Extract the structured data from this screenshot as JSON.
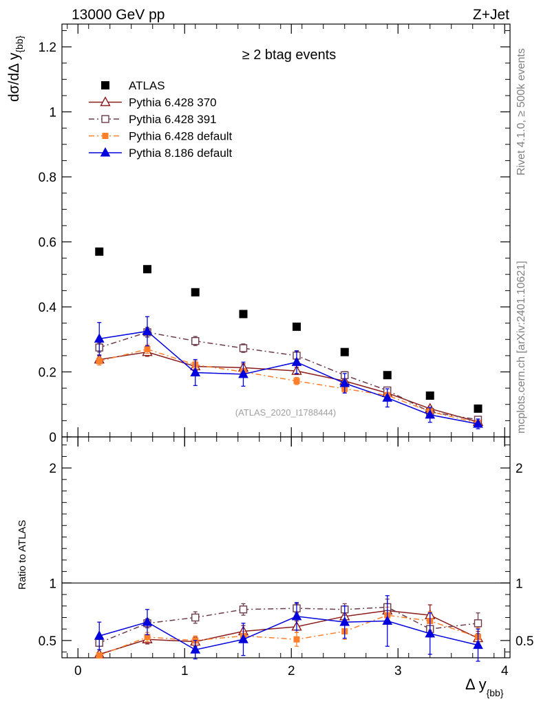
{
  "header": {
    "left_title": "13000 GeV pp",
    "right_title": "Z+Jet",
    "side_rivet": "Rivet 4.1.0, ≥ 500k events",
    "side_mcplots": "mcplots.cern.ch [arXiv:2401.10621]"
  },
  "colors": {
    "atlas": "#000000",
    "p6_370": "#8b1a1a",
    "p6_391": "#6b3a4a",
    "p6_default": "#ff7f2a",
    "p8_default": "#0000dd"
  },
  "chart_data": [
    {
      "type": "scatter",
      "panel": "main",
      "title": "≥ 2 btag events",
      "analysis_label": "(ATLAS_2020_I1788444)",
      "ylabel": "dσ/dΔ y_{bb}",
      "ylabel_main": "dσ/dΔ y",
      "ylabel_sub": "{bb}",
      "xlim": [
        -0.15,
        4.05
      ],
      "ylim": [
        0,
        1.27
      ],
      "yticks": [
        0,
        0.2,
        0.4,
        0.6,
        0.8,
        1,
        1.2
      ],
      "ytick_labels": [
        "0",
        "0.2",
        "0.4",
        "0.6",
        "0.8",
        "1",
        "1.2"
      ],
      "x": [
        0.2,
        0.65,
        1.1,
        1.55,
        2.05,
        2.5,
        2.9,
        3.3,
        3.75
      ],
      "legend": {
        "position": "top-left",
        "entries": [
          "ATLAS",
          "Pythia 6.428 370",
          "Pythia 6.428 391",
          "Pythia 6.428 default",
          "Pythia 8.186 default"
        ]
      },
      "series": [
        {
          "name": "ATLAS",
          "key": "atlas",
          "marker": "square-filled",
          "line": "none",
          "values": [
            0.57,
            0.516,
            0.445,
            0.378,
            0.339,
            0.261,
            0.19,
            0.127,
            0.087
          ],
          "errors": [
            0.006,
            0.006,
            0.005,
            0.005,
            0.005,
            0.004,
            0.004,
            0.003,
            0.003
          ]
        },
        {
          "name": "Pythia 6.428 370",
          "key": "p6_370",
          "marker": "triangle-open",
          "line": "solid",
          "values": [
            0.238,
            0.261,
            0.217,
            0.213,
            0.203,
            0.172,
            0.135,
            0.087,
            0.046
          ],
          "errors": [
            0.012,
            0.013,
            0.012,
            0.012,
            0.011,
            0.01,
            0.009,
            0.008,
            0.006
          ]
        },
        {
          "name": "Pythia 6.428 391",
          "key": "p6_391",
          "marker": "square-open",
          "line": "dashdot",
          "values": [
            0.275,
            0.322,
            0.295,
            0.273,
            0.25,
            0.19,
            0.143,
            0.077,
            0.053
          ],
          "errors": [
            0.014,
            0.015,
            0.014,
            0.013,
            0.013,
            0.011,
            0.01,
            0.008,
            0.007
          ]
        },
        {
          "name": "Pythia 6.428 default",
          "key": "p6_default",
          "marker": "square-filled-small",
          "line": "dashdot",
          "values": [
            0.233,
            0.27,
            0.222,
            0.2,
            0.172,
            0.148,
            0.128,
            0.078,
            0.043
          ],
          "errors": [
            0.012,
            0.013,
            0.012,
            0.011,
            0.011,
            0.01,
            0.009,
            0.008,
            0.006
          ]
        },
        {
          "name": "Pythia 8.186 default",
          "key": "p8_default",
          "marker": "triangle-filled",
          "line": "solid",
          "values": [
            0.302,
            0.325,
            0.198,
            0.193,
            0.23,
            0.165,
            0.12,
            0.068,
            0.04
          ],
          "errors": [
            0.05,
            0.045,
            0.04,
            0.037,
            0.035,
            0.03,
            0.028,
            0.023,
            0.015
          ]
        }
      ]
    },
    {
      "type": "scatter",
      "panel": "ratio",
      "ylabel": "Ratio to ATLAS",
      "xlabel": "Δ y_{bb}",
      "xlabel_main": "Δ y",
      "xlabel_sub": "{bb}",
      "xlim": [
        -0.15,
        4.05
      ],
      "ylim": [
        0.35,
        2.27
      ],
      "yticks": [
        0.5,
        1,
        2
      ],
      "ytick_labels": [
        "0.5",
        "1",
        "2"
      ],
      "xticks": [
        0,
        1,
        2,
        3,
        4
      ],
      "xtick_labels": [
        "0",
        "1",
        "2",
        "3",
        "4"
      ],
      "reference_line": 1,
      "x": [
        0.2,
        0.65,
        1.1,
        1.55,
        2.05,
        2.5,
        2.9,
        3.3,
        3.75
      ],
      "series": [
        {
          "name": "Pythia 6.428 370",
          "key": "p6_370",
          "marker": "triangle-open",
          "line": "solid",
          "values": [
            0.38,
            0.51,
            0.49,
            0.58,
            0.62,
            0.71,
            0.76,
            0.72,
            0.52
          ],
          "errors": [
            0.02,
            0.04,
            0.04,
            0.05,
            0.05,
            0.06,
            0.06,
            0.09,
            0.06
          ]
        },
        {
          "name": "Pythia 6.428 391",
          "key": "p6_391",
          "marker": "square-open",
          "line": "dashdot",
          "values": [
            0.48,
            0.65,
            0.7,
            0.77,
            0.78,
            0.77,
            0.79,
            0.6,
            0.65
          ],
          "errors": [
            0.03,
            0.04,
            0.05,
            0.05,
            0.04,
            0.05,
            0.07,
            0.07,
            0.09
          ]
        },
        {
          "name": "Pythia 6.428 default",
          "key": "p6_default",
          "marker": "square-filled-small",
          "line": "dashdot",
          "values": [
            0.37,
            0.53,
            0.5,
            0.54,
            0.51,
            0.58,
            0.72,
            0.67,
            0.53
          ],
          "errors": [
            0.02,
            0.04,
            0.04,
            0.04,
            0.06,
            0.07,
            0.07,
            0.08,
            0.08
          ]
        },
        {
          "name": "Pythia 8.186 default",
          "key": "p8_default",
          "marker": "triangle-filled",
          "line": "solid",
          "values": [
            0.54,
            0.66,
            0.42,
            0.51,
            0.71,
            0.66,
            0.67,
            0.56,
            0.46
          ],
          "errors": [
            0.12,
            0.11,
            0.08,
            0.14,
            0.12,
            0.14,
            0.22,
            0.18,
            0.14
          ]
        }
      ]
    }
  ]
}
